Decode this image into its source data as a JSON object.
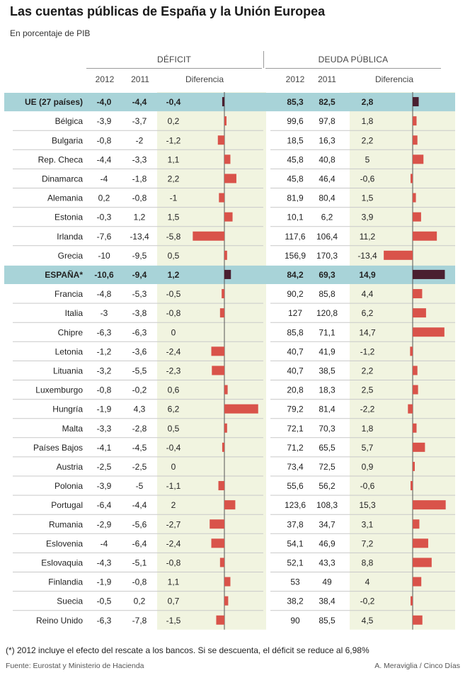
{
  "title": "Las cuentas públicas de España y la Unión Europea",
  "subtitle": "En porcentaje de PIB",
  "groups": {
    "deficit": "DÉFICIT",
    "debt": "DEUDA PÚBLICA"
  },
  "columns": {
    "year1": "2012",
    "year2": "2011",
    "diff": "Diferencia"
  },
  "colors": {
    "bar": "#d9534a",
    "bar_highlight": "#4a1f30",
    "highlight_row": "#a8d3d8",
    "diff_band": "#f1f4e0",
    "axis": "#555555"
  },
  "chart_data": {
    "type": "table",
    "highlight_rows": [
      "UE (27 países)",
      "ESPAÑA*"
    ],
    "rows": [
      {
        "name": "UE (27 países)",
        "def_2012": "-4,0",
        "def_2011": "-4,4",
        "def_diff": "-0,4",
        "def_diff_v": -0.4,
        "debt_2012": "85,3",
        "debt_2011": "82,5",
        "debt_diff": "2,8",
        "debt_diff_v": 2.8
      },
      {
        "name": "Bélgica",
        "def_2012": "-3,9",
        "def_2011": "-3,7",
        "def_diff": "0,2",
        "def_diff_v": 0.2,
        "debt_2012": "99,6",
        "debt_2011": "97,8",
        "debt_diff": "1,8",
        "debt_diff_v": 1.8
      },
      {
        "name": "Bulgaria",
        "def_2012": "-0,8",
        "def_2011": "-2",
        "def_diff": "-1,2",
        "def_diff_v": -1.2,
        "debt_2012": "18,5",
        "debt_2011": "16,3",
        "debt_diff": "2,2",
        "debt_diff_v": 2.2
      },
      {
        "name": "Rep. Checa",
        "def_2012": "-4,4",
        "def_2011": "-3,3",
        "def_diff": "1,1",
        "def_diff_v": 1.1,
        "debt_2012": "45,8",
        "debt_2011": "40,8",
        "debt_diff": "5",
        "debt_diff_v": 5
      },
      {
        "name": "Dinamarca",
        "def_2012": "-4",
        "def_2011": "-1,8",
        "def_diff": "2,2",
        "def_diff_v": 2.2,
        "debt_2012": "45,8",
        "debt_2011": "46,4",
        "debt_diff": "-0,6",
        "debt_diff_v": -0.6
      },
      {
        "name": "Alemania",
        "def_2012": "0,2",
        "def_2011": "-0,8",
        "def_diff": "-1",
        "def_diff_v": -1,
        "debt_2012": "81,9",
        "debt_2011": "80,4",
        "debt_diff": "1,5",
        "debt_diff_v": 1.5
      },
      {
        "name": "Estonia",
        "def_2012": "-0,3",
        "def_2011": "1,2",
        "def_diff": "1,5",
        "def_diff_v": 1.5,
        "debt_2012": "10,1",
        "debt_2011": "6,2",
        "debt_diff": "3,9",
        "debt_diff_v": 3.9
      },
      {
        "name": "Irlanda",
        "def_2012": "-7,6",
        "def_2011": "-13,4",
        "def_diff": "-5,8",
        "def_diff_v": -5.8,
        "debt_2012": "117,6",
        "debt_2011": "106,4",
        "debt_diff": "11,2",
        "debt_diff_v": 11.2
      },
      {
        "name": "Grecia",
        "def_2012": "-10",
        "def_2011": "-9,5",
        "def_diff": "0,5",
        "def_diff_v": 0.5,
        "debt_2012": "156,9",
        "debt_2011": "170,3",
        "debt_diff": "-13,4",
        "debt_diff_v": -13.4
      },
      {
        "name": "ESPAÑA*",
        "def_2012": "-10,6",
        "def_2011": "-9,4",
        "def_diff": "1,2",
        "def_diff_v": 1.2,
        "debt_2012": "84,2",
        "debt_2011": "69,3",
        "debt_diff": "14,9",
        "debt_diff_v": 14.9
      },
      {
        "name": "Francia",
        "def_2012": "-4,8",
        "def_2011": "-5,3",
        "def_diff": "-0,5",
        "def_diff_v": -0.5,
        "debt_2012": "90,2",
        "debt_2011": "85,8",
        "debt_diff": "4,4",
        "debt_diff_v": 4.4
      },
      {
        "name": "Italia",
        "def_2012": "-3",
        "def_2011": "-3,8",
        "def_diff": "-0,8",
        "def_diff_v": -0.8,
        "debt_2012": "127",
        "debt_2011": "120,8",
        "debt_diff": "6,2",
        "debt_diff_v": 6.2
      },
      {
        "name": "Chipre",
        "def_2012": "-6,3",
        "def_2011": "-6,3",
        "def_diff": "0",
        "def_diff_v": 0,
        "debt_2012": "85,8",
        "debt_2011": "71,1",
        "debt_diff": "14,7",
        "debt_diff_v": 14.7
      },
      {
        "name": "Letonia",
        "def_2012": "-1,2",
        "def_2011": "-3,6",
        "def_diff": "-2,4",
        "def_diff_v": -2.4,
        "debt_2012": "40,7",
        "debt_2011": "41,9",
        "debt_diff": "-1,2",
        "debt_diff_v": -1.2
      },
      {
        "name": "Lituania",
        "def_2012": "-3,2",
        "def_2011": "-5,5",
        "def_diff": "-2,3",
        "def_diff_v": -2.3,
        "debt_2012": "40,7",
        "debt_2011": "38,5",
        "debt_diff": "2,2",
        "debt_diff_v": 2.2
      },
      {
        "name": "Luxemburgo",
        "def_2012": "-0,8",
        "def_2011": "-0,2",
        "def_diff": "0,6",
        "def_diff_v": 0.6,
        "debt_2012": "20,8",
        "debt_2011": "18,3",
        "debt_diff": "2,5",
        "debt_diff_v": 2.5
      },
      {
        "name": "Hungría",
        "def_2012": "-1,9",
        "def_2011": "4,3",
        "def_diff": "6,2",
        "def_diff_v": 6.2,
        "debt_2012": "79,2",
        "debt_2011": "81,4",
        "debt_diff": "-2,2",
        "debt_diff_v": -2.2
      },
      {
        "name": "Malta",
        "def_2012": "-3,3",
        "def_2011": "-2,8",
        "def_diff": "0,5",
        "def_diff_v": 0.5,
        "debt_2012": "72,1",
        "debt_2011": "70,3",
        "debt_diff": "1,8",
        "debt_diff_v": 1.8
      },
      {
        "name": "Países Bajos",
        "def_2012": "-4,1",
        "def_2011": "-4,5",
        "def_diff": "-0,4",
        "def_diff_v": -0.4,
        "debt_2012": "71,2",
        "debt_2011": "65,5",
        "debt_diff": "5,7",
        "debt_diff_v": 5.7
      },
      {
        "name": "Austria",
        "def_2012": "-2,5",
        "def_2011": "-2,5",
        "def_diff": "0",
        "def_diff_v": 0,
        "debt_2012": "73,4",
        "debt_2011": "72,5",
        "debt_diff": "0,9",
        "debt_diff_v": 0.9
      },
      {
        "name": "Polonia",
        "def_2012": "-3,9",
        "def_2011": "-5",
        "def_diff": "-1,1",
        "def_diff_v": -1.1,
        "debt_2012": "55,6",
        "debt_2011": "56,2",
        "debt_diff": "-0,6",
        "debt_diff_v": -0.6
      },
      {
        "name": "Portugal",
        "def_2012": "-6,4",
        "def_2011": "-4,4",
        "def_diff": "2",
        "def_diff_v": 2,
        "debt_2012": "123,6",
        "debt_2011": "108,3",
        "debt_diff": "15,3",
        "debt_diff_v": 15.3
      },
      {
        "name": "Rumania",
        "def_2012": "-2,9",
        "def_2011": "-5,6",
        "def_diff": "-2,7",
        "def_diff_v": -2.7,
        "debt_2012": "37,8",
        "debt_2011": "34,7",
        "debt_diff": "3,1",
        "debt_diff_v": 3.1
      },
      {
        "name": "Eslovenia",
        "def_2012": "-4",
        "def_2011": "-6,4",
        "def_diff": "-2,4",
        "def_diff_v": -2.4,
        "debt_2012": "54,1",
        "debt_2011": "46,9",
        "debt_diff": "7,2",
        "debt_diff_v": 7.2
      },
      {
        "name": "Eslovaquia",
        "def_2012": "-4,3",
        "def_2011": "-5,1",
        "def_diff": "-0,8",
        "def_diff_v": -0.8,
        "debt_2012": "52,1",
        "debt_2011": "43,3",
        "debt_diff": "8,8",
        "debt_diff_v": 8.8
      },
      {
        "name": "Finlandia",
        "def_2012": "-1,9",
        "def_2011": "-0,8",
        "def_diff": "1,1",
        "def_diff_v": 1.1,
        "debt_2012": "53",
        "debt_2011": "49",
        "debt_diff": "4",
        "debt_diff_v": 4
      },
      {
        "name": "Suecia",
        "def_2012": "-0,5",
        "def_2011": "0,2",
        "def_diff": "0,7",
        "def_diff_v": 0.7,
        "debt_2012": "38,2",
        "debt_2011": "38,4",
        "debt_diff": "-0,2",
        "debt_diff_v": -0.2
      },
      {
        "name": "Reino Unido",
        "def_2012": "-6,3",
        "def_2011": "-7,8",
        "def_diff": "-1,5",
        "def_diff_v": -1.5,
        "debt_2012": "90",
        "debt_2011": "85,5",
        "debt_diff": "4,5",
        "debt_diff_v": 4.5
      }
    ]
  },
  "footnote": "(*) 2012 incluye el efecto del rescate a los bancos. Si se descuenta, el déficit se reduce al 6,98%",
  "source": "Fuente: Eurostat y Ministerio de Hacienda",
  "credit": "A. Meraviglia / Cinco Días"
}
